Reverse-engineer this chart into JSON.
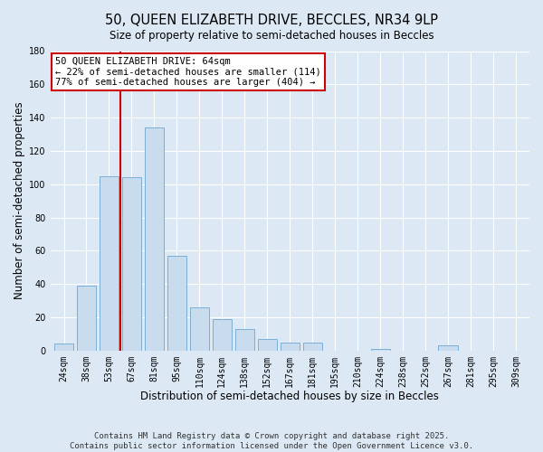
{
  "title": "50, QUEEN ELIZABETH DRIVE, BECCLES, NR34 9LP",
  "subtitle": "Size of property relative to semi-detached houses in Beccles",
  "xlabel": "Distribution of semi-detached houses by size in Beccles",
  "ylabel": "Number of semi-detached properties",
  "bar_labels": [
    "24sqm",
    "38sqm",
    "53sqm",
    "67sqm",
    "81sqm",
    "95sqm",
    "110sqm",
    "124sqm",
    "138sqm",
    "152sqm",
    "167sqm",
    "181sqm",
    "195sqm",
    "210sqm",
    "224sqm",
    "238sqm",
    "252sqm",
    "267sqm",
    "281sqm",
    "295sqm",
    "309sqm"
  ],
  "bar_values": [
    4,
    39,
    105,
    104,
    134,
    57,
    26,
    19,
    13,
    7,
    5,
    5,
    0,
    0,
    1,
    0,
    0,
    3,
    0,
    0,
    0
  ],
  "bar_color": "#c8dcee",
  "bar_edge_color": "#7bafd4",
  "ylim": [
    0,
    180
  ],
  "yticks": [
    0,
    20,
    40,
    60,
    80,
    100,
    120,
    140,
    160,
    180
  ],
  "property_label": "50 QUEEN ELIZABETH DRIVE: 64sqm",
  "pct_smaller": 22,
  "count_smaller": 114,
  "pct_larger": 77,
  "count_larger": 404,
  "annotation_box_color": "#ffffff",
  "annotation_box_edge": "#cc0000",
  "property_line_color": "#cc0000",
  "footer_line1": "Contains HM Land Registry data © Crown copyright and database right 2025.",
  "footer_line2": "Contains public sector information licensed under the Open Government Licence v3.0.",
  "background_color": "#dce8f4",
  "grid_color": "#ffffff",
  "title_fontsize": 10.5,
  "subtitle_fontsize": 8.5,
  "axis_label_fontsize": 8.5,
  "tick_fontsize": 7,
  "annotation_fontsize": 7.5,
  "footer_fontsize": 6.5
}
